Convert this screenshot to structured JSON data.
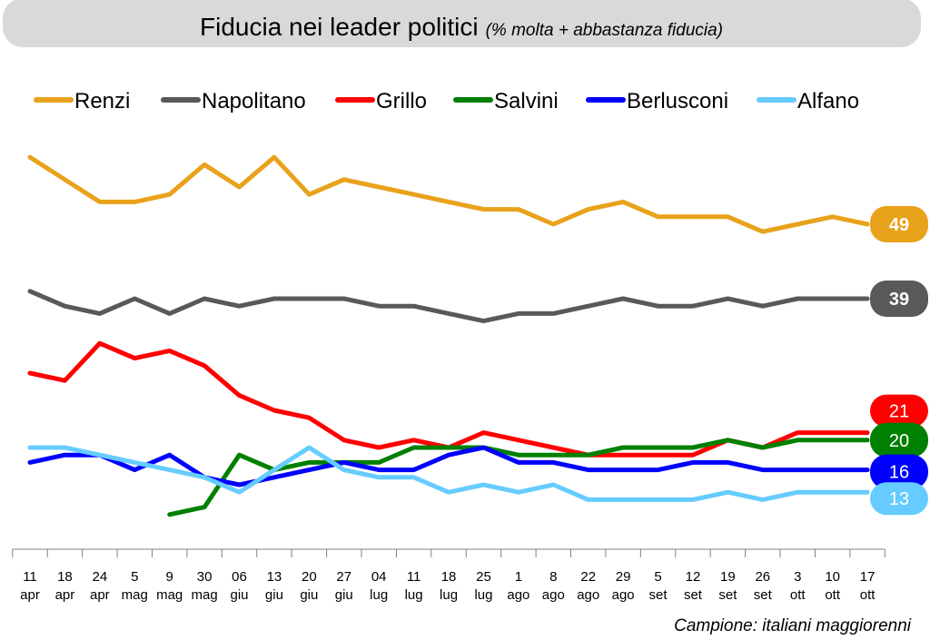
{
  "chart_data": {
    "type": "line",
    "title": "Fiducia nei leader politici",
    "subtitle": "(% molta + abbastanza fiducia)",
    "note": "Campione: italiani maggiorenni",
    "legend": "top",
    "grid": false,
    "ylim": [
      5,
      60
    ],
    "categories": [
      "11 apr",
      "18 apr",
      "24 apr",
      "5 mag",
      "9 mag",
      "30 mag",
      "06 giu",
      "13 giu",
      "20 giu",
      "27 giu",
      "04 lug",
      "11 lug",
      "18 lug",
      "25 lug",
      "1 ago",
      "8 ago",
      "22 ago",
      "29 ago",
      "5 set",
      "12 set",
      "19 set",
      "26 set",
      "3 ott",
      "10 ott",
      "17 ott"
    ],
    "series": [
      {
        "name": "Renzi",
        "color": "#E9A21B",
        "values": [
          58,
          55,
          52,
          52,
          53,
          57,
          54,
          58,
          53,
          55,
          54,
          53,
          52,
          51,
          51,
          49,
          51,
          52,
          50,
          50,
          50,
          48,
          49,
          50,
          49
        ]
      },
      {
        "name": "Napolitano",
        "color": "#595959",
        "values": [
          40,
          38,
          37,
          39,
          37,
          39,
          38,
          39,
          39,
          39,
          38,
          38,
          37,
          36,
          37,
          37,
          38,
          39,
          38,
          38,
          39,
          38,
          39,
          39,
          39
        ]
      },
      {
        "name": "Grillo",
        "color": "#FF0000",
        "values": [
          29,
          28,
          33,
          31,
          32,
          30,
          26,
          24,
          23,
          20,
          19,
          20,
          19,
          21,
          20,
          19,
          18,
          18,
          18,
          18,
          20,
          19,
          21,
          21,
          21
        ]
      },
      {
        "name": "Salvini",
        "color": "#008000",
        "values": [
          null,
          null,
          null,
          null,
          10,
          11,
          18,
          16,
          17,
          17,
          17,
          19,
          19,
          19,
          18,
          18,
          18,
          19,
          19,
          19,
          20,
          19,
          20,
          20,
          20
        ]
      },
      {
        "name": "Berlusconi",
        "color": "#0000FF",
        "values": [
          17,
          18,
          18,
          16,
          18,
          15,
          14,
          15,
          16,
          17,
          16,
          16,
          18,
          19,
          17,
          17,
          16,
          16,
          16,
          17,
          17,
          16,
          16,
          16,
          16
        ]
      },
      {
        "name": "Alfano",
        "color": "#66CCFF",
        "values": [
          19,
          19,
          18,
          17,
          16,
          15,
          13,
          16,
          19,
          16,
          15,
          15,
          13,
          14,
          13,
          14,
          12,
          12,
          12,
          12,
          13,
          12,
          13,
          13,
          13
        ]
      }
    ]
  }
}
